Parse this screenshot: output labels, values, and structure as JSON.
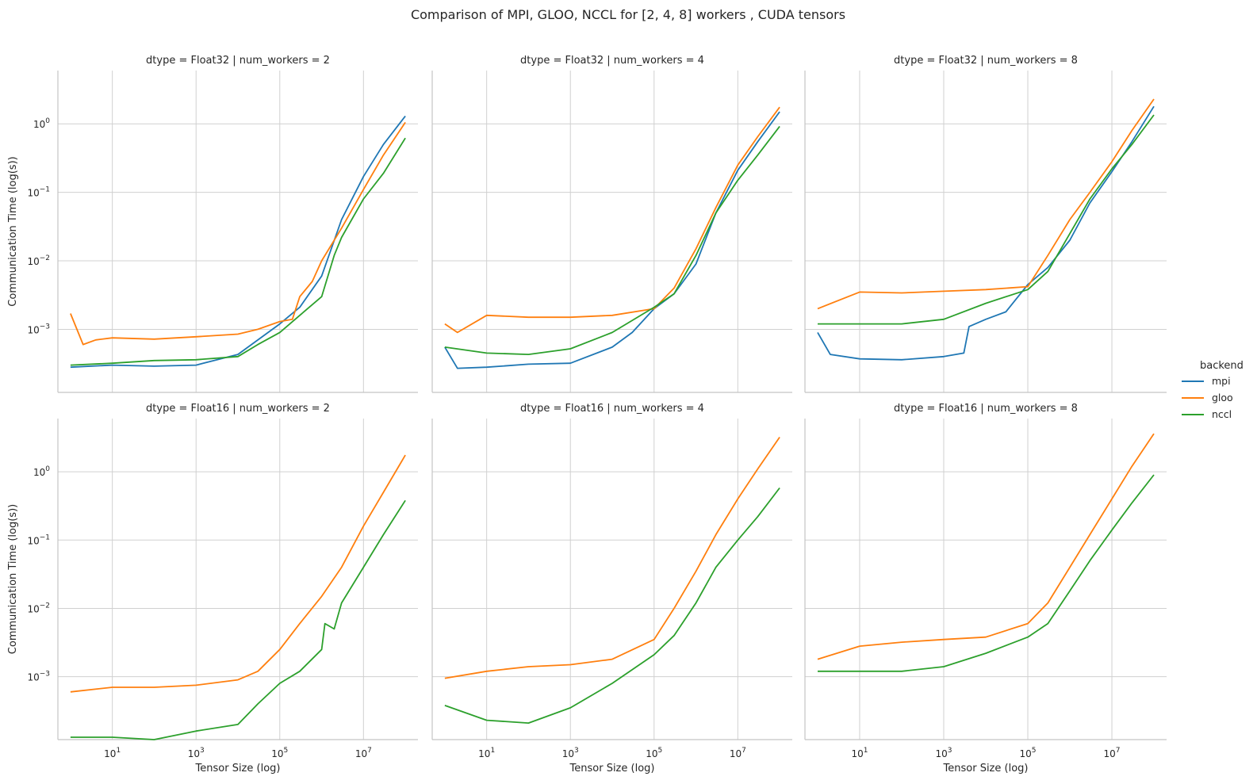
{
  "figure": {
    "title": "Comparison of MPI, GLOO, NCCL for [2, 4, 8] workers , CUDA tensors"
  },
  "legend": {
    "title": "backend",
    "placement": "center-right",
    "entries": [
      {
        "name": "mpi",
        "color": "#1f77b4"
      },
      {
        "name": "gloo",
        "color": "#ff7f0e"
      },
      {
        "name": "nccl",
        "color": "#2ca02c"
      }
    ]
  },
  "chart_data": {
    "type": "line",
    "x_scale": "log",
    "y_scale": "log",
    "grid": true,
    "xlabel": "Tensor Size (log)",
    "ylabel": "Communication Time (log(s))",
    "xlim": [
      0.5,
      200000000
    ],
    "ylim": [
      0.00012,
      6
    ],
    "x_ticks": [
      {
        "value": 10,
        "label": "10",
        "exp": "1"
      },
      {
        "value": 1000,
        "label": "10",
        "exp": "3"
      },
      {
        "value": 100000,
        "label": "10",
        "exp": "5"
      },
      {
        "value": 10000000,
        "label": "10",
        "exp": "7"
      }
    ],
    "y_ticks": [
      {
        "value": 0.001,
        "label": "10",
        "exp": "−3"
      },
      {
        "value": 0.01,
        "label": "10",
        "exp": "−2"
      },
      {
        "value": 0.1,
        "label": "10",
        "exp": "−1"
      },
      {
        "value": 1,
        "label": "10",
        "exp": "0"
      }
    ],
    "panels": [
      {
        "title": "dtype = Float32 | num_workers = 2",
        "series": [
          {
            "name": "mpi",
            "x": [
              1,
              10,
              100,
              1000,
              10000,
              100000,
              300000,
              1000000,
              3000000,
              10000000,
              30000000,
              100000000
            ],
            "y": [
              0.00028,
              0.0003,
              0.00029,
              0.0003,
              0.00043,
              0.0012,
              0.0021,
              0.006,
              0.04,
              0.17,
              0.5,
              1.3
            ]
          },
          {
            "name": "gloo",
            "x": [
              1,
              2,
              4,
              10,
              100,
              1000,
              10000,
              30000,
              100000,
              200000,
              300000,
              600000,
              1000000,
              3000000,
              10000000,
              30000000,
              100000000
            ],
            "y": [
              0.0017,
              0.0006,
              0.0007,
              0.00075,
              0.00072,
              0.00078,
              0.00085,
              0.001,
              0.0013,
              0.0014,
              0.003,
              0.005,
              0.01,
              0.03,
              0.11,
              0.35,
              1.05
            ]
          },
          {
            "name": "nccl",
            "x": [
              1,
              10,
              100,
              1000,
              10000,
              30000,
              100000,
              300000,
              1000000,
              2000000,
              3000000,
              10000000,
              30000000,
              100000000
            ],
            "y": [
              0.0003,
              0.00032,
              0.00035,
              0.00036,
              0.0004,
              0.0006,
              0.0009,
              0.0016,
              0.003,
              0.012,
              0.022,
              0.08,
              0.19,
              0.62
            ]
          }
        ]
      },
      {
        "title": "dtype = Float32 | num_workers = 4",
        "series": [
          {
            "name": "mpi",
            "x": [
              1,
              2,
              10,
              100,
              1000,
              10000,
              30000,
              100000,
              300000,
              1000000,
              3000000,
              10000000,
              30000000,
              100000000
            ],
            "y": [
              0.00055,
              0.00027,
              0.00028,
              0.00031,
              0.00032,
              0.00055,
              0.0009,
              0.002,
              0.0033,
              0.009,
              0.05,
              0.21,
              0.55,
              1.5
            ]
          },
          {
            "name": "gloo",
            "x": [
              1,
              2,
              10,
              100,
              1000,
              10000,
              100000,
              300000,
              1000000,
              3000000,
              10000000,
              30000000,
              100000000
            ],
            "y": [
              0.0012,
              0.0009,
              0.0016,
              0.0015,
              0.0015,
              0.0016,
              0.002,
              0.004,
              0.015,
              0.06,
              0.25,
              0.65,
              1.75
            ]
          },
          {
            "name": "nccl",
            "x": [
              1,
              10,
              100,
              1000,
              10000,
              100000,
              300000,
              1000000,
              3000000,
              10000000,
              30000000,
              100000000
            ],
            "y": [
              0.00055,
              0.00045,
              0.00043,
              0.00052,
              0.0009,
              0.0021,
              0.0033,
              0.012,
              0.05,
              0.15,
              0.35,
              0.92
            ]
          }
        ]
      },
      {
        "title": "dtype = Float32 | num_workers = 8",
        "series": [
          {
            "name": "mpi",
            "x": [
              1,
              2,
              10,
              100,
              1000,
              3000,
              4000,
              10000,
              30000,
              100000,
              300000,
              1000000,
              3000000,
              10000000,
              30000000,
              100000000
            ],
            "y": [
              0.0009,
              0.00043,
              0.00037,
              0.00036,
              0.0004,
              0.00045,
              0.0011,
              0.0014,
              0.0018,
              0.0045,
              0.008,
              0.02,
              0.07,
              0.2,
              0.55,
              1.8
            ]
          },
          {
            "name": "gloo",
            "x": [
              1,
              10,
              100,
              1000,
              10000,
              100000,
              300000,
              1000000,
              3000000,
              10000000,
              30000000,
              100000000
            ],
            "y": [
              0.002,
              0.0035,
              0.0034,
              0.0036,
              0.0038,
              0.0042,
              0.012,
              0.04,
              0.1,
              0.28,
              0.8,
              2.3
            ]
          },
          {
            "name": "nccl",
            "x": [
              1,
              10,
              100,
              1000,
              10000,
              100000,
              300000,
              1000000,
              3000000,
              10000000,
              30000000,
              100000000
            ],
            "y": [
              0.0012,
              0.0012,
              0.0012,
              0.0014,
              0.0024,
              0.0038,
              0.007,
              0.025,
              0.08,
              0.22,
              0.5,
              1.35
            ]
          }
        ]
      },
      {
        "title": "dtype = Float16 | num_workers = 2",
        "series": [
          {
            "name": "gloo",
            "x": [
              1,
              10,
              100,
              1000,
              10000,
              30000,
              100000,
              300000,
              1000000,
              3000000,
              10000000,
              30000000,
              100000000
            ],
            "y": [
              0.0006,
              0.0007,
              0.0007,
              0.00075,
              0.0009,
              0.0012,
              0.0025,
              0.006,
              0.015,
              0.04,
              0.16,
              0.5,
              1.75
            ]
          },
          {
            "name": "nccl",
            "x": [
              1,
              10,
              100,
              1000,
              10000,
              30000,
              100000,
              300000,
              1000000,
              1200000,
              2000000,
              3000000,
              10000000,
              30000000,
              100000000
            ],
            "y": [
              0.00013,
              0.00013,
              0.00012,
              0.00016,
              0.0002,
              0.0004,
              0.0008,
              0.0012,
              0.0025,
              0.006,
              0.005,
              0.012,
              0.04,
              0.12,
              0.38
            ]
          }
        ]
      },
      {
        "title": "dtype = Float16 | num_workers = 4",
        "series": [
          {
            "name": "gloo",
            "x": [
              1,
              10,
              100,
              1000,
              10000,
              100000,
              300000,
              1000000,
              3000000,
              10000000,
              30000000,
              100000000
            ],
            "y": [
              0.00095,
              0.0012,
              0.0014,
              0.0015,
              0.0018,
              0.0035,
              0.01,
              0.035,
              0.12,
              0.4,
              1.1,
              3.2
            ]
          },
          {
            "name": "nccl",
            "x": [
              1,
              10,
              100,
              1000,
              10000,
              100000,
              300000,
              1000000,
              3000000,
              10000000,
              30000000,
              100000000
            ],
            "y": [
              0.00038,
              0.00023,
              0.00021,
              0.00035,
              0.0008,
              0.0021,
              0.004,
              0.012,
              0.04,
              0.1,
              0.22,
              0.58
            ]
          }
        ]
      },
      {
        "title": "dtype = Float16 | num_workers = 8",
        "series": [
          {
            "name": "gloo",
            "x": [
              1,
              10,
              100,
              1000,
              10000,
              100000,
              300000,
              1000000,
              3000000,
              10000000,
              30000000,
              100000000
            ],
            "y": [
              0.0018,
              0.0028,
              0.0032,
              0.0035,
              0.0038,
              0.006,
              0.012,
              0.04,
              0.12,
              0.4,
              1.2,
              3.6
            ]
          },
          {
            "name": "nccl",
            "x": [
              1,
              10,
              100,
              1000,
              10000,
              100000,
              300000,
              1000000,
              3000000,
              10000000,
              30000000,
              100000000
            ],
            "y": [
              0.0012,
              0.0012,
              0.0012,
              0.0014,
              0.0022,
              0.0038,
              0.006,
              0.018,
              0.05,
              0.14,
              0.35,
              0.9
            ]
          }
        ]
      }
    ]
  }
}
